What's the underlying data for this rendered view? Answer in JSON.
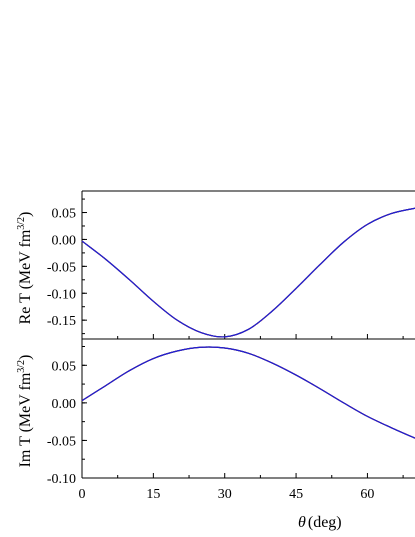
{
  "chart_data": [
    {
      "type": "line",
      "xlabel_var": "θ",
      "xlabel_unit": "(deg)",
      "ylabel": "Re T (MeV fm",
      "ylabel_sup": "3/2",
      "ylabel_tail": ")",
      "ylim": [
        -0.185,
        0.09
      ],
      "xlim": [
        0,
        70
      ],
      "yticks": [
        "0.05",
        "0.00",
        "-0.05",
        "-0.10",
        "-0.15"
      ],
      "ytick_values": [
        0.05,
        0.0,
        -0.05,
        -0.1,
        -0.15
      ],
      "series": [
        {
          "color": "#000000",
          "x": [
            0,
            5,
            10,
            15,
            20,
            25,
            30,
            35,
            40,
            45,
            50,
            55,
            60,
            65,
            70
          ],
          "y": [
            -0.003,
            -0.037,
            -0.075,
            -0.115,
            -0.15,
            -0.173,
            -0.181,
            -0.167,
            -0.133,
            -0.091,
            -0.047,
            -0.005,
            0.028,
            0.048,
            0.058
          ]
        },
        {
          "color": "#d62728",
          "dash": "3,2",
          "x": [
            0,
            5,
            10,
            15,
            20,
            25,
            30,
            35,
            40,
            45,
            50,
            55,
            60,
            65,
            70
          ],
          "y": [
            -0.003,
            -0.037,
            -0.075,
            -0.115,
            -0.15,
            -0.173,
            -0.181,
            -0.167,
            -0.133,
            -0.091,
            -0.047,
            -0.005,
            0.028,
            0.048,
            0.058
          ]
        },
        {
          "color": "#1f1fd6",
          "x": [
            0,
            5,
            10,
            15,
            20,
            25,
            30,
            35,
            40,
            45,
            50,
            55,
            60,
            65,
            70
          ],
          "y": [
            -0.003,
            -0.037,
            -0.075,
            -0.115,
            -0.15,
            -0.173,
            -0.181,
            -0.167,
            -0.133,
            -0.091,
            -0.047,
            -0.005,
            0.028,
            0.048,
            0.058
          ]
        }
      ]
    },
    {
      "type": "line",
      "ylabel": "Im T (MeV fm",
      "ylabel_sup": "3/2",
      "ylabel_tail": ")",
      "ylim": [
        -0.1,
        0.085
      ],
      "xlim": [
        0,
        70
      ],
      "xticks": [
        "0",
        "15",
        "30",
        "45",
        "60"
      ],
      "xtick_values": [
        0,
        15,
        30,
        45,
        60
      ],
      "yticks": [
        "0.05",
        "0.00",
        "-0.05",
        "-0.10"
      ],
      "ytick_values": [
        0.05,
        0.0,
        -0.05,
        -0.1
      ],
      "series": [
        {
          "color": "#000000",
          "x": [
            0,
            5,
            10,
            15,
            20,
            25,
            30,
            35,
            40,
            45,
            50,
            55,
            60,
            65,
            70
          ],
          "y": [
            0.003,
            0.023,
            0.043,
            0.059,
            0.069,
            0.074,
            0.073,
            0.066,
            0.053,
            0.037,
            0.019,
            0.0,
            -0.018,
            -0.033,
            -0.047
          ]
        },
        {
          "color": "#d62728",
          "dash": "3,2",
          "x": [
            0,
            5,
            10,
            15,
            20,
            25,
            30,
            35,
            40,
            45,
            50,
            55,
            60,
            65,
            70
          ],
          "y": [
            0.003,
            0.023,
            0.043,
            0.059,
            0.069,
            0.074,
            0.073,
            0.066,
            0.053,
            0.037,
            0.019,
            0.0,
            -0.018,
            -0.033,
            -0.047
          ]
        },
        {
          "color": "#1f1fd6",
          "x": [
            0,
            5,
            10,
            15,
            20,
            25,
            30,
            35,
            40,
            45,
            50,
            55,
            60,
            65,
            70
          ],
          "y": [
            0.003,
            0.023,
            0.043,
            0.059,
            0.069,
            0.074,
            0.073,
            0.066,
            0.053,
            0.037,
            0.019,
            0.0,
            -0.018,
            -0.033,
            -0.047
          ]
        }
      ]
    }
  ]
}
